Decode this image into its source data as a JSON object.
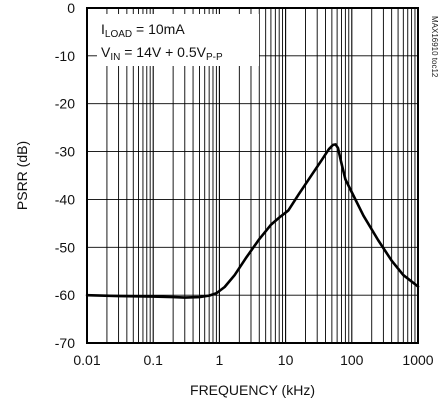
{
  "chart_data": {
    "type": "line",
    "xlabel": "FREQUENCY (kHz)",
    "ylabel": "PSRR (dB)",
    "x_scale": "log",
    "xlim": [
      0.01,
      1000
    ],
    "ylim": [
      -70,
      0
    ],
    "x_ticks": [
      0.01,
      0.1,
      1,
      10,
      100,
      1000
    ],
    "x_tick_labels": [
      "0.01",
      "0.1",
      "1",
      "10",
      "100",
      "1000"
    ],
    "y_ticks": [
      0,
      -10,
      -20,
      -30,
      -40,
      -50,
      -60,
      -70
    ],
    "y_tick_labels": [
      "0",
      "-10",
      "-20",
      "-30",
      "-40",
      "-50",
      "-60",
      "-70"
    ],
    "grid": true,
    "annotations": {
      "line1": {
        "main": "I",
        "sub": "LOAD",
        "rest": " = 10mA"
      },
      "line2": {
        "main": "V",
        "sub": "IN",
        "rest": " = 14V + 0.5V",
        "sub2": "P-P"
      }
    },
    "figure_id": "MAX16910 toc12",
    "series": [
      {
        "x": [
          0.01,
          0.03,
          0.1,
          0.2,
          0.3,
          0.5,
          0.7,
          0.9,
          1.2,
          1.7,
          2.5,
          4,
          6,
          8,
          11,
          16,
          25,
          35,
          45,
          52,
          57,
          62,
          68,
          80,
          100,
          150,
          250,
          400,
          600,
          1000
        ],
        "y": [
          -60,
          -60.2,
          -60.3,
          -60.4,
          -60.5,
          -60.4,
          -60.1,
          -59.6,
          -58.3,
          -55.8,
          -52.3,
          -48.3,
          -45.3,
          -43.8,
          -42.3,
          -38.8,
          -34.8,
          -31.8,
          -29.5,
          -28.6,
          -28.5,
          -29.3,
          -31.8,
          -35.8,
          -38.5,
          -43.4,
          -48.5,
          -52.8,
          -55.8,
          -58.2
        ]
      }
    ]
  }
}
